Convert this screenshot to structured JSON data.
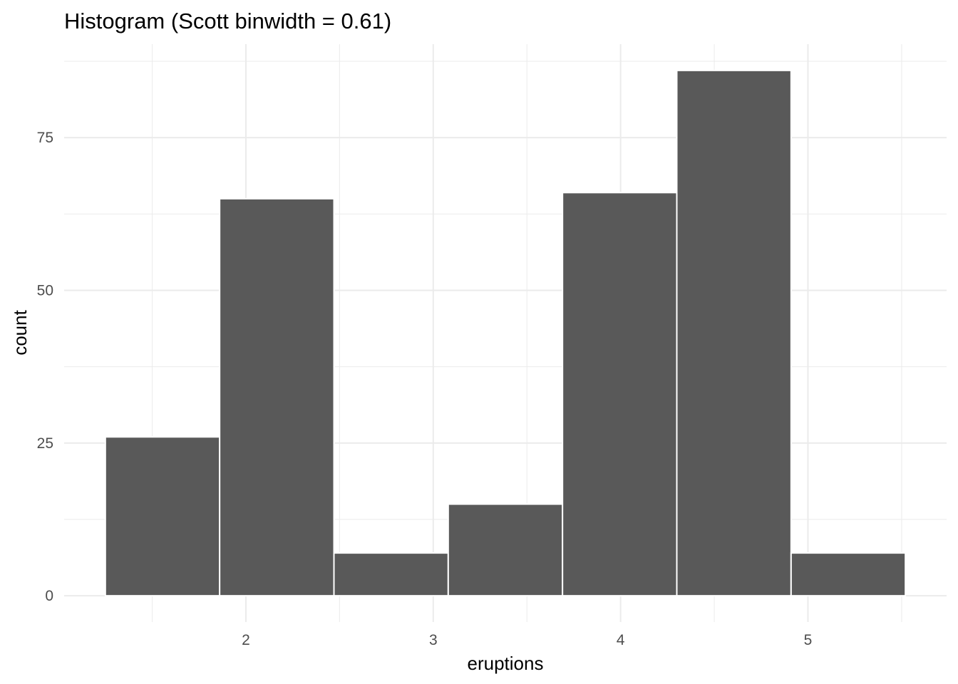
{
  "chart_data": {
    "type": "bar",
    "subtype": "histogram",
    "title": "Histogram (Scott binwidth = 0.61)",
    "xlabel": "eruptions",
    "ylabel": "count",
    "binwidth": 0.61,
    "bins": [
      {
        "x0": 1.25,
        "x1": 1.86,
        "count": 26
      },
      {
        "x0": 1.86,
        "x1": 2.47,
        "count": 65
      },
      {
        "x0": 2.47,
        "x1": 3.08,
        "count": 7
      },
      {
        "x0": 3.08,
        "x1": 3.69,
        "count": 15
      },
      {
        "x0": 3.69,
        "x1": 4.3,
        "count": 66
      },
      {
        "x0": 4.3,
        "x1": 4.91,
        "count": 86
      },
      {
        "x0": 4.91,
        "x1": 5.52,
        "count": 7
      }
    ],
    "xlim": [
      1.03,
      5.74
    ],
    "ylim": [
      -4.3,
      90.3
    ],
    "x_ticks": [
      2,
      3,
      4,
      5
    ],
    "x_tick_labels": [
      "2",
      "3",
      "4",
      "5"
    ],
    "x_minor_ticks": [
      1.5,
      2.5,
      3.5,
      4.5,
      5.5
    ],
    "y_ticks": [
      0,
      25,
      50,
      75
    ],
    "y_tick_labels": [
      "0",
      "25",
      "50",
      "75"
    ],
    "y_minor_ticks": [
      12.5,
      37.5,
      62.5,
      87.5
    ],
    "grid": true,
    "bar_color": "#595959",
    "bar_outline_color": "#ffffff",
    "grid_color": "#ebebeb"
  }
}
